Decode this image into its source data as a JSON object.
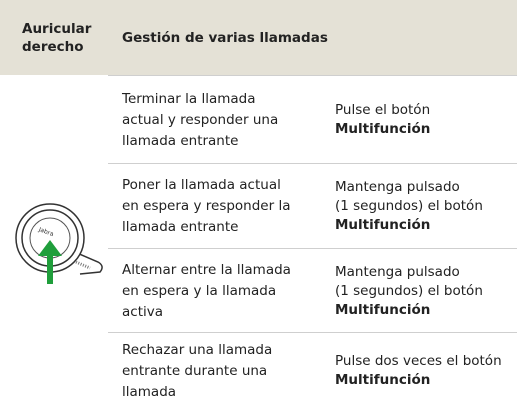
{
  "header": {
    "col1": [
      "Auricular",
      "derecho"
    ],
    "col2": "Gestión de varias llamadas"
  },
  "rows": [
    {
      "action": [
        "Terminar la llamada",
        "actual y responder una",
        "llamada entrante"
      ],
      "instruction": [
        "Pulse el botón"
      ],
      "button": "Multifunción"
    },
    {
      "action": [
        "Poner la llamada actual",
        "en espera y responder la",
        "llamada entrante"
      ],
      "instruction": [
        "Mantenga pulsado",
        "(1 segundos) el botón"
      ],
      "button": "Multifunción"
    },
    {
      "action": [
        "Alternar entre la llamada",
        "en espera y la llamada",
        "activa"
      ],
      "instruction": [
        "Mantenga pulsado",
        "(1 segundos) el botón"
      ],
      "button": "Multifunción"
    },
    {
      "action": [
        "Rechazar una llamada",
        "entrante durante una",
        "llamada"
      ],
      "instruction": [
        "Pulse dos veces el botón"
      ],
      "button": "Multifunción"
    }
  ]
}
